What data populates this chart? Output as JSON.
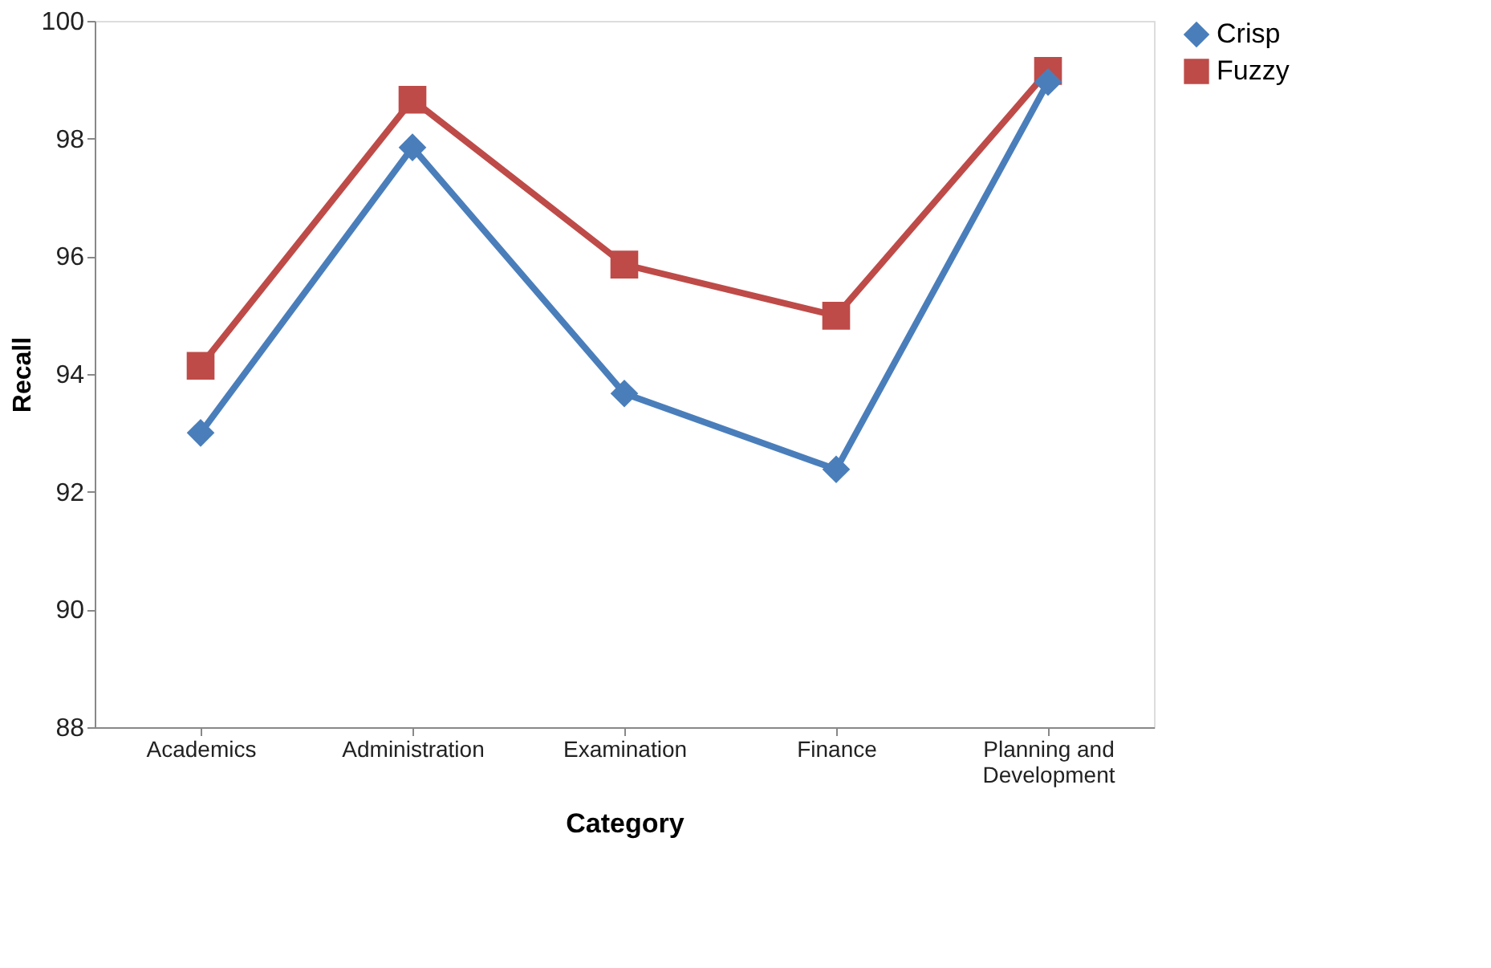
{
  "chart_data": {
    "type": "line",
    "xlabel": "Category",
    "ylabel": "Recall",
    "categories": [
      "Academics",
      "Administration",
      "Examination",
      "Finance",
      "Planning and Development"
    ],
    "series": [
      {
        "name": "Crisp",
        "color": "#4a7ebb",
        "marker": "diamond",
        "values": [
          93.0,
          97.85,
          93.67,
          92.38,
          98.96
        ]
      },
      {
        "name": "Fuzzy",
        "color": "#be4b48",
        "marker": "square",
        "values": [
          94.14,
          98.66,
          95.86,
          94.99,
          99.15
        ]
      }
    ],
    "ylim": [
      88,
      100
    ],
    "yticks": [
      88,
      90,
      92,
      94,
      96,
      98,
      100
    ],
    "grid": false,
    "legend": "right",
    "line_style": "solid"
  }
}
